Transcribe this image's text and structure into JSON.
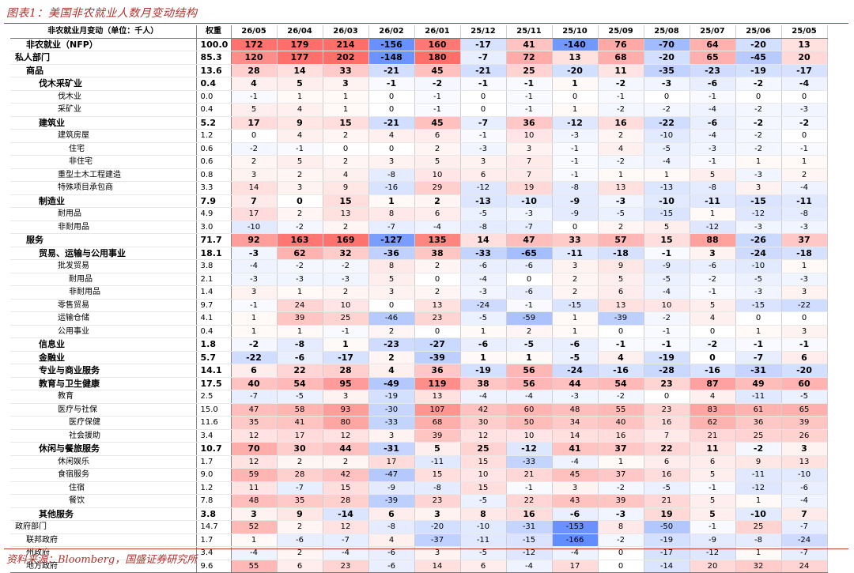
{
  "title": "图表1：美国非农就业人数月变动结构",
  "source": "资料来源：Bloomberg，国盛证券研究所",
  "header": {
    "name": "非农就业月变动（单位：千人）",
    "weight": "权重",
    "months": [
      "26/05",
      "26/04",
      "26/03",
      "26/02",
      "26/01",
      "25/12",
      "25/11",
      "25/10",
      "25/09",
      "25/08",
      "25/07",
      "25/06",
      "25/05"
    ]
  },
  "rows": [
    {
      "name": "非农就业（NFP）",
      "indent": 1,
      "bold": true,
      "weight": "100.0",
      "values": [
        "172",
        "179",
        "214",
        "-156",
        "160",
        "-17",
        "41",
        "-140",
        "76",
        "-70",
        "64",
        "-20",
        "13"
      ]
    },
    {
      "name": "私人部门",
      "indent": 0,
      "bold": true,
      "weight": "85.3",
      "values": [
        "120",
        "177",
        "202",
        "-148",
        "180",
        "-7",
        "72",
        "13",
        "68",
        "-20",
        "65",
        "-45",
        "20"
      ]
    },
    {
      "name": "商品",
      "indent": 1,
      "bold": true,
      "weight": "13.6",
      "values": [
        "28",
        "14",
        "33",
        "-21",
        "45",
        "-21",
        "25",
        "-20",
        "11",
        "-35",
        "-23",
        "-19",
        "-17"
      ]
    },
    {
      "name": "伐木采矿业",
      "indent": 2,
      "bold": true,
      "weight": "0.4",
      "values": [
        "4",
        "5",
        "3",
        "-1",
        "-2",
        "-1",
        "-1",
        "1",
        "-2",
        "-3",
        "-6",
        "-2",
        "-4"
      ]
    },
    {
      "name": "伐木业",
      "indent": 3,
      "bold": false,
      "weight": "0.0",
      "values": [
        "-1",
        "1",
        "1",
        "0",
        "-1",
        "0",
        "-1",
        "0",
        "-1",
        "0",
        "-1",
        "0",
        "0"
      ]
    },
    {
      "name": "采矿业",
      "indent": 3,
      "bold": false,
      "weight": "0.4",
      "values": [
        "5",
        "4",
        "1",
        "0",
        "-1",
        "0",
        "-1",
        "1",
        "-2",
        "-2",
        "-4",
        "-2",
        "-3"
      ]
    },
    {
      "name": "建筑业",
      "indent": 2,
      "bold": true,
      "weight": "5.2",
      "values": [
        "17",
        "9",
        "15",
        "-21",
        "45",
        "-7",
        "36",
        "-12",
        "16",
        "-22",
        "-6",
        "-2",
        "-2"
      ]
    },
    {
      "name": "建筑房屋",
      "indent": 3,
      "bold": false,
      "weight": "1.2",
      "values": [
        "0",
        "4",
        "2",
        "4",
        "6",
        "-1",
        "10",
        "-3",
        "2",
        "-10",
        "-4",
        "-2",
        "0"
      ]
    },
    {
      "name": "住宅",
      "indent": 4,
      "bold": false,
      "weight": "0.6",
      "values": [
        "-2",
        "-1",
        "0",
        "0",
        "2",
        "-3",
        "3",
        "-1",
        "4",
        "-5",
        "-3",
        "-2",
        "-1"
      ]
    },
    {
      "name": "非住宅",
      "indent": 4,
      "bold": false,
      "weight": "0.6",
      "values": [
        "2",
        "5",
        "2",
        "3",
        "5",
        "3",
        "7",
        "-1",
        "-2",
        "-4",
        "-1",
        "1",
        "1"
      ]
    },
    {
      "name": "重型土木工程建造",
      "indent": 3,
      "bold": false,
      "weight": "0.8",
      "values": [
        "3",
        "2",
        "4",
        "-8",
        "10",
        "6",
        "7",
        "-1",
        "1",
        "1",
        "5",
        "-3",
        "2"
      ]
    },
    {
      "name": "特殊项目承包商",
      "indent": 3,
      "bold": false,
      "weight": "3.3",
      "values": [
        "14",
        "3",
        "9",
        "-16",
        "29",
        "-12",
        "19",
        "-8",
        "13",
        "-13",
        "-8",
        "3",
        "-4"
      ]
    },
    {
      "name": "制造业",
      "indent": 2,
      "bold": true,
      "weight": "7.9",
      "values": [
        "7",
        "0",
        "15",
        "1",
        "2",
        "-13",
        "-10",
        "-9",
        "-3",
        "-10",
        "-11",
        "-15",
        "-11"
      ]
    },
    {
      "name": "耐用品",
      "indent": 3,
      "bold": false,
      "weight": "4.9",
      "values": [
        "17",
        "2",
        "13",
        "8",
        "6",
        "-5",
        "-3",
        "-9",
        "-5",
        "-15",
        "1",
        "-12",
        "-8"
      ]
    },
    {
      "name": "非耐用品",
      "indent": 3,
      "bold": false,
      "weight": "3.0",
      "values": [
        "-10",
        "-2",
        "2",
        "-7",
        "-4",
        "-8",
        "-7",
        "0",
        "2",
        "5",
        "-12",
        "-3",
        "-3"
      ]
    },
    {
      "name": "服务",
      "indent": 1,
      "bold": true,
      "weight": "71.7",
      "values": [
        "92",
        "163",
        "169",
        "-127",
        "135",
        "14",
        "47",
        "33",
        "57",
        "15",
        "88",
        "-26",
        "37"
      ]
    },
    {
      "name": "贸易、运输与公用事业",
      "indent": 2,
      "bold": true,
      "weight": "18.1",
      "values": [
        "-3",
        "62",
        "32",
        "-36",
        "38",
        "-33",
        "-65",
        "-11",
        "-18",
        "-1",
        "3",
        "-24",
        "-18"
      ]
    },
    {
      "name": "批发贸易",
      "indent": 3,
      "bold": false,
      "weight": "3.8",
      "values": [
        "-4",
        "-2",
        "-2",
        "8",
        "2",
        "-6",
        "-6",
        "3",
        "9",
        "-9",
        "-6",
        "-10",
        "1"
      ]
    },
    {
      "name": "耐用品",
      "indent": 4,
      "bold": false,
      "weight": "2.1",
      "values": [
        "-3",
        "-3",
        "-3",
        "5",
        "0",
        "-4",
        "0",
        "2",
        "5",
        "-5",
        "-2",
        "-5",
        "-3"
      ]
    },
    {
      "name": "非耐用品",
      "indent": 4,
      "bold": false,
      "weight": "1.4",
      "values": [
        "3",
        "1",
        "2",
        "3",
        "2",
        "-3",
        "-6",
        "2",
        "6",
        "-4",
        "-1",
        "-3",
        "3"
      ]
    },
    {
      "name": "零售贸易",
      "indent": 3,
      "bold": false,
      "weight": "9.7",
      "values": [
        "-1",
        "24",
        "10",
        "0",
        "13",
        "-24",
        "-1",
        "-15",
        "13",
        "10",
        "5",
        "-15",
        "-22"
      ]
    },
    {
      "name": "运输仓储",
      "indent": 3,
      "bold": false,
      "weight": "4.1",
      "values": [
        "1",
        "39",
        "25",
        "-46",
        "23",
        "-5",
        "-59",
        "1",
        "-39",
        "-2",
        "4",
        "0",
        "0"
      ]
    },
    {
      "name": "公用事业",
      "indent": 3,
      "bold": false,
      "weight": "0.4",
      "values": [
        "1",
        "1",
        "-1",
        "2",
        "0",
        "1",
        "2",
        "1",
        "0",
        "-1",
        "0",
        "1",
        "3"
      ]
    },
    {
      "name": "信息业",
      "indent": 2,
      "bold": true,
      "weight": "1.8",
      "values": [
        "-2",
        "-8",
        "1",
        "-23",
        "-27",
        "-6",
        "-5",
        "-6",
        "-1",
        "-1",
        "-2",
        "-1",
        "-1"
      ]
    },
    {
      "name": "金融业",
      "indent": 2,
      "bold": true,
      "weight": "5.7",
      "values": [
        "-22",
        "-6",
        "-17",
        "2",
        "-39",
        "1",
        "1",
        "-5",
        "4",
        "-19",
        "0",
        "-7",
        "6"
      ]
    },
    {
      "name": "专业与商业服务",
      "indent": 2,
      "bold": true,
      "weight": "14.1",
      "values": [
        "6",
        "22",
        "28",
        "4",
        "36",
        "-19",
        "56",
        "-24",
        "-16",
        "-28",
        "-16",
        "-31",
        "-20"
      ]
    },
    {
      "name": "教育与卫生健康",
      "indent": 2,
      "bold": true,
      "weight": "17.5",
      "values": [
        "40",
        "54",
        "95",
        "-49",
        "119",
        "38",
        "56",
        "44",
        "54",
        "23",
        "87",
        "49",
        "60"
      ]
    },
    {
      "name": "教育",
      "indent": 3,
      "bold": false,
      "weight": "2.5",
      "values": [
        "-7",
        "-5",
        "3",
        "-19",
        "13",
        "-4",
        "-4",
        "-3",
        "-2",
        "0",
        "4",
        "-11",
        "-5"
      ]
    },
    {
      "name": "医疗与社保",
      "indent": 3,
      "bold": false,
      "weight": "15.0",
      "values": [
        "47",
        "58",
        "93",
        "-30",
        "107",
        "42",
        "60",
        "48",
        "55",
        "23",
        "83",
        "61",
        "65"
      ]
    },
    {
      "name": "医疗保健",
      "indent": 4,
      "bold": false,
      "weight": "11.6",
      "values": [
        "35",
        "41",
        "80",
        "-33",
        "68",
        "30",
        "50",
        "34",
        "40",
        "16",
        "62",
        "36",
        "39"
      ]
    },
    {
      "name": "社会援助",
      "indent": 4,
      "bold": false,
      "weight": "3.4",
      "values": [
        "12",
        "17",
        "12",
        "3",
        "39",
        "12",
        "10",
        "14",
        "16",
        "7",
        "21",
        "25",
        "26"
      ]
    },
    {
      "name": "休闲与餐旅服务",
      "indent": 2,
      "bold": true,
      "weight": "10.7",
      "values": [
        "70",
        "30",
        "44",
        "-31",
        "5",
        "25",
        "-12",
        "41",
        "37",
        "22",
        "11",
        "-2",
        "3"
      ]
    },
    {
      "name": "休闲娱乐",
      "indent": 3,
      "bold": false,
      "weight": "1.7",
      "values": [
        "12",
        "2",
        "2",
        "17",
        "-11",
        "15",
        "-33",
        "-4",
        "1",
        "6",
        "6",
        "9",
        "13"
      ]
    },
    {
      "name": "食宿服务",
      "indent": 3,
      "bold": false,
      "weight": "9.0",
      "values": [
        "59",
        "28",
        "42",
        "-47",
        "15",
        "10",
        "21",
        "45",
        "37",
        "16",
        "5",
        "-11",
        "-10"
      ]
    },
    {
      "name": "住宿",
      "indent": 4,
      "bold": false,
      "weight": "1.2",
      "values": [
        "11",
        "-7",
        "15",
        "-9",
        "-8",
        "15",
        "-1",
        "3",
        "-2",
        "-5",
        "-1",
        "-12",
        "-6"
      ]
    },
    {
      "name": "餐饮",
      "indent": 4,
      "bold": false,
      "weight": "7.8",
      "values": [
        "48",
        "35",
        "28",
        "-39",
        "23",
        "-5",
        "22",
        "43",
        "39",
        "21",
        "5",
        "1",
        "-4"
      ]
    },
    {
      "name": "其他服务",
      "indent": 2,
      "bold": true,
      "weight": "3.8",
      "values": [
        "3",
        "9",
        "-14",
        "6",
        "3",
        "8",
        "16",
        "-6",
        "-3",
        "19",
        "5",
        "-10",
        "7"
      ]
    },
    {
      "name": "政府部门",
      "indent": 0,
      "bold": false,
      "weight": "14.7",
      "values": [
        "52",
        "2",
        "12",
        "-8",
        "-20",
        "-10",
        "-31",
        "-153",
        "8",
        "-50",
        "-1",
        "25",
        "-7"
      ]
    },
    {
      "name": "联邦政府",
      "indent": 1,
      "bold": false,
      "weight": "1.7",
      "values": [
        "1",
        "-6",
        "-7",
        "4",
        "-37",
        "-11",
        "-15",
        "-166",
        "-2",
        "-19",
        "-9",
        "-8",
        "-24"
      ]
    },
    {
      "name": "州政府",
      "indent": 1,
      "bold": false,
      "weight": "3.4",
      "values": [
        "-4",
        "2",
        "-4",
        "-6",
        "3",
        "-5",
        "-12",
        "-4",
        "0",
        "-17",
        "-12",
        "1",
        "-7"
      ]
    },
    {
      "name": "地方政府",
      "indent": 1,
      "bold": false,
      "weight": "9.6",
      "values": [
        "55",
        "6",
        "23",
        "-6",
        "14",
        "6",
        "-4",
        "17",
        "0",
        "-14",
        "20",
        "32",
        "24"
      ]
    }
  ]
}
